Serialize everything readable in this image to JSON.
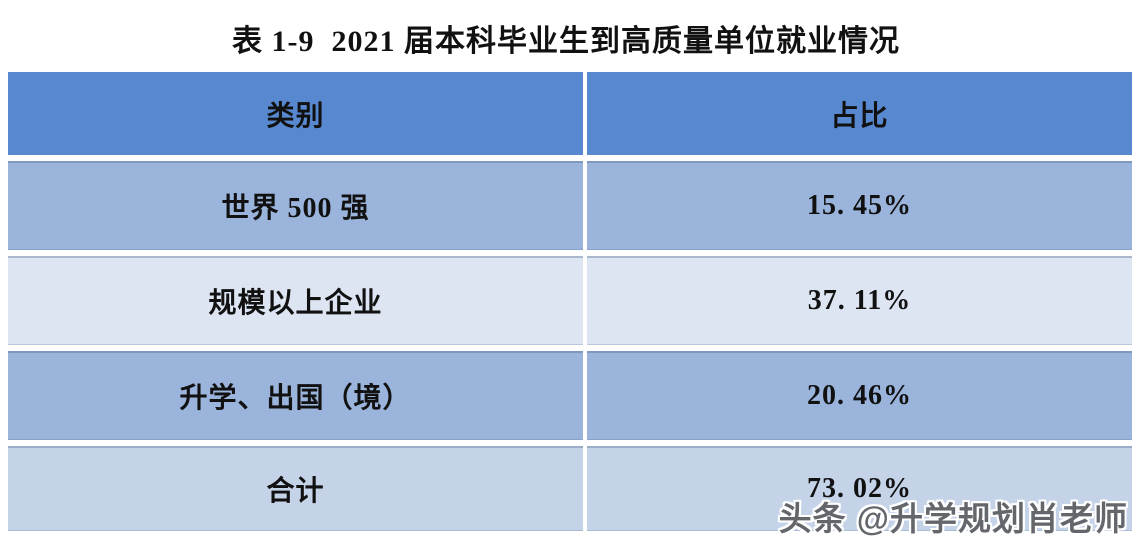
{
  "title": "表 1-9  2021 届本科毕业生到高质量单位就业情况",
  "table": {
    "headers": {
      "category": "类别",
      "share": "占比"
    },
    "rows": [
      {
        "category": "世界 500 强",
        "share": "15. 45%"
      },
      {
        "category": "规模以上企业",
        "share": "37. 11%"
      },
      {
        "category": "升学、出国（境）",
        "share": "20. 46%"
      },
      {
        "category": "合计",
        "share": "73. 02%"
      }
    ]
  },
  "watermark": "头条 @升学规划肖老师",
  "colors": {
    "header_bg": "#5889D0",
    "row_medium_bg": "#9AB4DB",
    "row_light_bg": "#DCE5F1",
    "row_total_bg": "#C5D3E8",
    "text_color": "#111111",
    "watermark_color": "#63676c"
  }
}
